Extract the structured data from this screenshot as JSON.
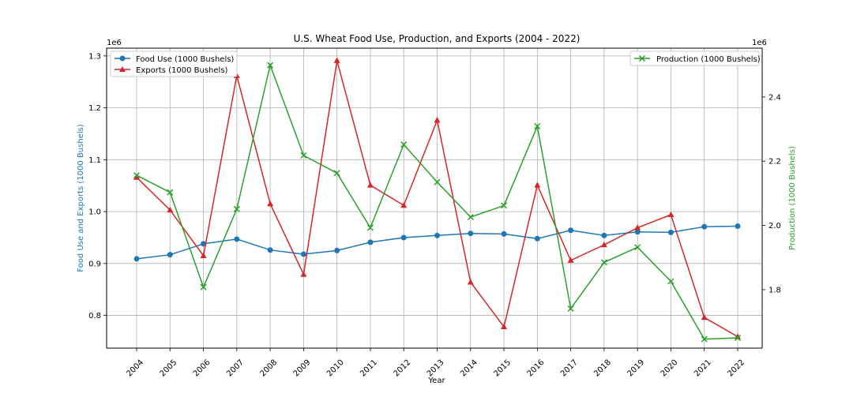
{
  "chart_data": {
    "type": "line",
    "title": "U.S. Wheat Food Use, Production, and Exports (2004 - 2022)",
    "xlabel": "Year",
    "ylabel_left": "Food Use and Exports (1000 Bushels)",
    "ylabel_right": "Production (1000 Bushels)",
    "left_scale_label": "1e6",
    "right_scale_label": "1e6",
    "grid": true,
    "x": [
      "2004",
      "2005",
      "2006",
      "2007",
      "2008",
      "2009",
      "2010",
      "2011",
      "2012",
      "2013",
      "2014",
      "2015",
      "2016",
      "2017",
      "2018",
      "2019",
      "2020",
      "2021",
      "2022"
    ],
    "ylim_left": [
      0.737,
      1.315
    ],
    "ylim_right": [
      1.618,
      2.552
    ],
    "yticks_left": [
      "0.8",
      "0.9",
      "1.0",
      "1.1",
      "1.2",
      "1.3"
    ],
    "yticks_right": [
      "1.8",
      "2.0",
      "2.2",
      "2.4"
    ],
    "legend_left_position": "upper-left",
    "legend_right_position": "upper-right",
    "series": [
      {
        "name": "Food Use (1000 Bushels)",
        "axis": "left",
        "color": "#1f77b4",
        "marker": "circle",
        "values": [
          0.909,
          0.917,
          0.938,
          0.947,
          0.926,
          0.918,
          0.925,
          0.941,
          0.95,
          0.954,
          0.958,
          0.957,
          0.948,
          0.964,
          0.954,
          0.961,
          0.96,
          0.971,
          0.972
        ]
      },
      {
        "name": "Exports (1000 Bushels)",
        "axis": "left",
        "color": "#d62728",
        "marker": "triangle",
        "values": [
          1.066,
          1.003,
          0.915,
          1.262,
          1.015,
          0.879,
          1.291,
          1.051,
          1.012,
          1.176,
          0.864,
          0.778,
          1.051,
          0.906,
          0.936,
          0.969,
          0.994,
          0.796,
          0.759
        ]
      },
      {
        "name": "Production (1000 Bushels)",
        "axis": "right",
        "color": "#2ca02c",
        "marker": "x",
        "values": [
          2.156,
          2.103,
          1.808,
          2.051,
          2.499,
          2.218,
          2.163,
          1.993,
          2.252,
          2.135,
          2.026,
          2.062,
          2.309,
          1.741,
          1.885,
          1.932,
          1.826,
          1.646,
          1.65
        ]
      }
    ]
  }
}
